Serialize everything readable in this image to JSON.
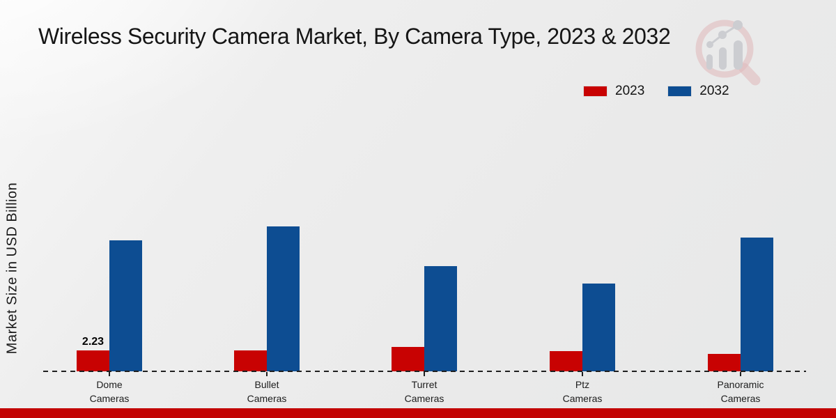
{
  "header": {
    "title": "Wireless Security Camera Market, By Camera Type, 2023 & 2032"
  },
  "y_axis": {
    "label": "Market Size in USD Billion"
  },
  "legend": {
    "items": [
      {
        "label": "2023",
        "color": "#c80202"
      },
      {
        "label": "2032",
        "color": "#0d4d92"
      }
    ]
  },
  "watermark": {
    "icon": "magnifier-bar-chart-logo-watermark"
  },
  "footer": {
    "bar_color": "#c20404"
  },
  "chart_data": {
    "type": "bar",
    "title": "Wireless Security Camera Market, By Camera Type, 2023 & 2032",
    "xlabel": "",
    "ylabel": "Market Size in USD Billion",
    "categories": [
      "Dome Cameras",
      "Bullet Cameras",
      "Turret Cameras",
      "Ptz Cameras",
      "Panoramic Cameras"
    ],
    "category_label_lines": [
      [
        "Dome",
        "Cameras"
      ],
      [
        "Bullet",
        "Cameras"
      ],
      [
        "Turret",
        "Cameras"
      ],
      [
        "Ptz",
        "Cameras"
      ],
      [
        "Panoramic",
        "Cameras"
      ]
    ],
    "series": [
      {
        "name": "2023",
        "color": "#c80202",
        "values": [
          2.23,
          2.2,
          2.6,
          2.15,
          1.86
        ]
      },
      {
        "name": "2032",
        "color": "#0d4d92",
        "values": [
          14.0,
          15.5,
          11.2,
          9.4,
          14.3
        ]
      }
    ],
    "point_labels": [
      {
        "series": "2023",
        "category": "Dome Cameras",
        "text": "2.23"
      }
    ],
    "ylim": [
      0,
      16.5
    ],
    "grid": false,
    "y_ticks_visible": false,
    "baseline_style": "dashed",
    "legend_position": "top-right"
  }
}
